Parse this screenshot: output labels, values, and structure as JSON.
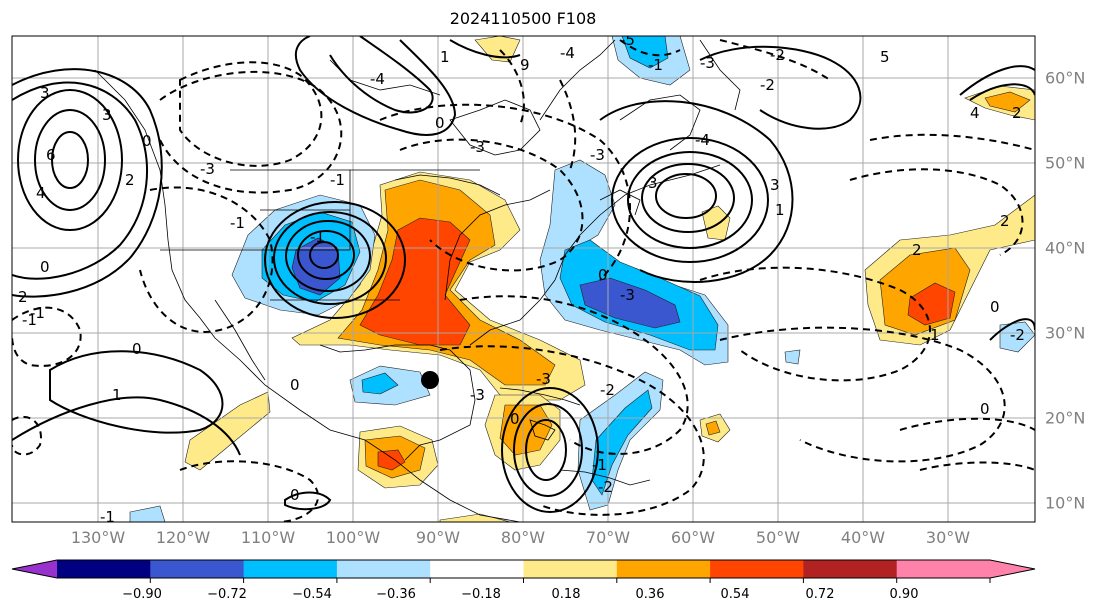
{
  "title": "2024110500 F108",
  "map": {
    "lon_labels": [
      "130°W",
      "120°W",
      "110°W",
      "100°W",
      "90°W",
      "80°W",
      "70°W",
      "60°W",
      "50°W",
      "40°W",
      "30°W"
    ],
    "lat_labels": [
      "60°N",
      "50°N",
      "40°N",
      "30°N",
      "20°N",
      "10°N"
    ],
    "contour_labels": [
      "3",
      "3",
      "-4",
      "9",
      "1",
      "-5",
      "6",
      "4",
      "-3",
      "-3",
      "0",
      "-2",
      "-3",
      "-4",
      "-3",
      "-2",
      "-4",
      "-1",
      "3",
      "5",
      "4",
      "-1",
      "1",
      "-3",
      "-2",
      "1",
      "2",
      "-3",
      "0",
      "-1",
      "0",
      "0",
      "0",
      "2",
      "-2",
      "0",
      "-3",
      "3",
      "2",
      "2",
      "-1",
      "0",
      "1",
      "-2",
      "-1",
      "0",
      "2",
      "-1",
      "0",
      "0",
      "-1",
      "-1"
    ],
    "marker": "filled-circle"
  },
  "colorbar": {
    "labels": [
      "−0.90",
      "−0.72",
      "−0.54",
      "−0.36",
      "−0.18",
      "0.18",
      "0.36",
      "0.54",
      "0.72",
      "0.90"
    ],
    "colors": [
      "#9932cc",
      "#000080",
      "#3a57cf",
      "#00bfff",
      "#aee1ff",
      "#ffffff",
      "#ffea8a",
      "#ffa500",
      "#ff4500",
      "#b22222",
      "#ff82ab"
    ]
  }
}
